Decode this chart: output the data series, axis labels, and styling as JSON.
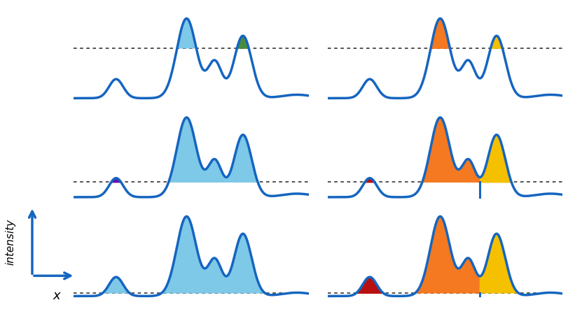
{
  "fig_width": 8.11,
  "fig_height": 4.6,
  "dpi": 100,
  "bg_color": "#ffffff",
  "curve_color": "#1565c0",
  "curve_lw": 2.5,
  "fill_blue": "#7ec8e8",
  "fill_orange": "#f47920",
  "fill_yellow": "#f5c000",
  "fill_green": "#4a8c3f",
  "fill_purple": "#6a0dad",
  "fill_red": "#b81010",
  "dotted_color": "#222222",
  "arrow_color": "#1565c0",
  "axis_label_x": "x",
  "axis_label_y": "intensity"
}
